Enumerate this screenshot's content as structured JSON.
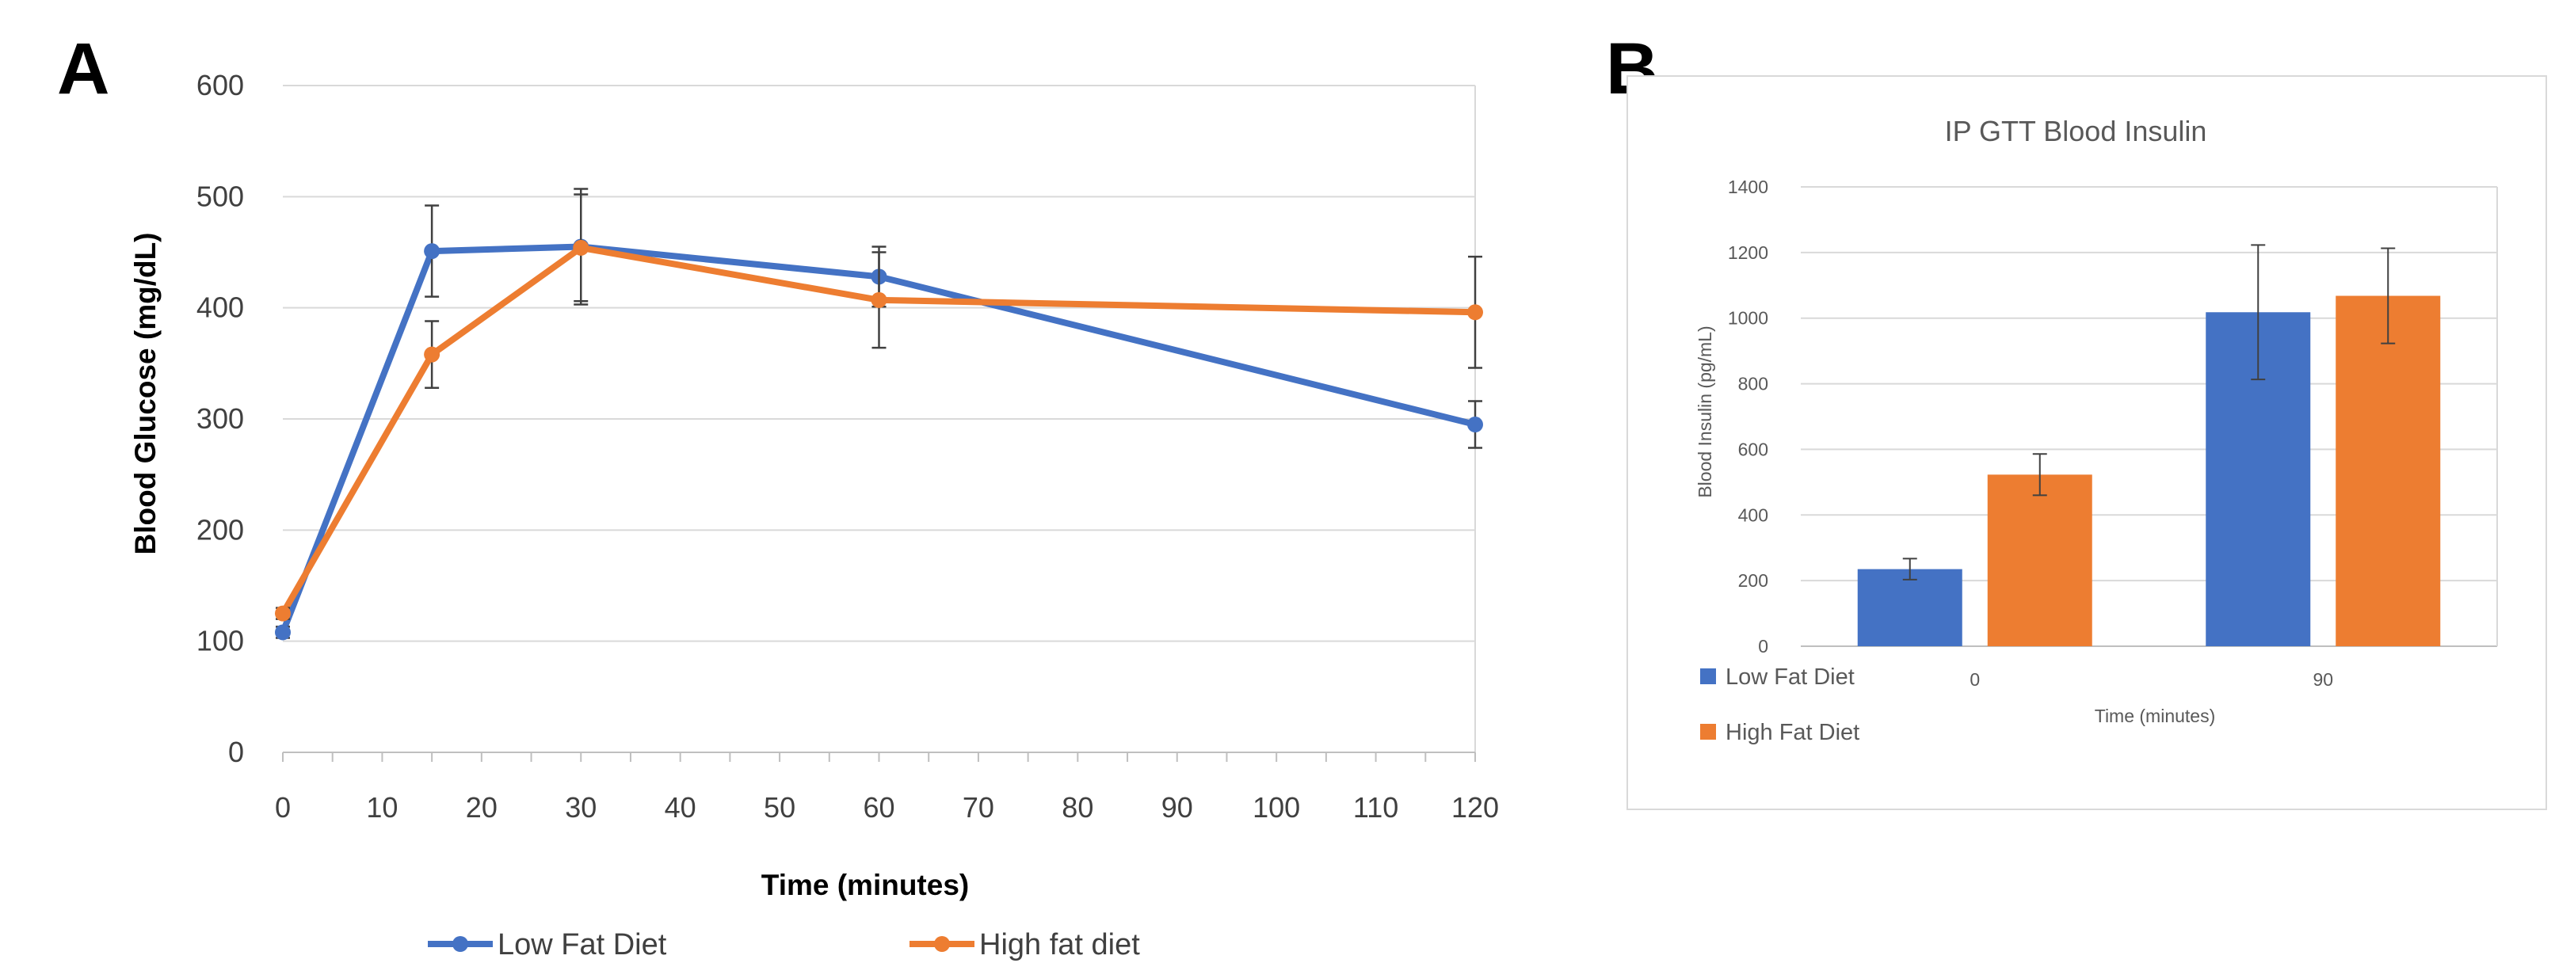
{
  "panels": {
    "a_letter": "A",
    "b_letter": "B"
  },
  "colors": {
    "low_fat": "#4472C4",
    "high_fat": "#ED7D31",
    "grid": "#D9D9D9",
    "error_bar": "#404040"
  },
  "chart_data": [
    {
      "type": "line",
      "title": "",
      "xlabel": "Time (minutes)",
      "ylabel": "Blood Glucose (mg/dL)",
      "x_ticks": [
        0,
        10,
        20,
        30,
        40,
        50,
        60,
        70,
        80,
        90,
        100,
        110,
        120
      ],
      "y_ticks": [
        0,
        100,
        200,
        300,
        400,
        500,
        600
      ],
      "xlim": [
        0,
        120
      ],
      "ylim": [
        0,
        600
      ],
      "grid": "horizontal",
      "legend": "bottom",
      "series": [
        {
          "name": "Low Fat Diet",
          "x": [
            0,
            15,
            30,
            60,
            120
          ],
          "values": [
            108,
            451,
            455,
            428,
            295
          ],
          "errors": [
            5,
            41,
            52,
            27,
            21
          ]
        },
        {
          "name": "High fat diet",
          "x": [
            0,
            15,
            30,
            60,
            120
          ],
          "values": [
            125,
            358,
            454,
            407,
            396
          ],
          "errors": [
            5,
            30,
            48,
            43,
            50
          ]
        }
      ]
    },
    {
      "type": "bar",
      "title": "IP GTT Blood Insulin",
      "xlabel": "Time (minutes)",
      "ylabel": "Blood Insulin (pg/mL)",
      "categories": [
        "0",
        "90"
      ],
      "y_ticks": [
        0,
        200,
        400,
        600,
        800,
        1000,
        1200,
        1400
      ],
      "ylim": [
        0,
        1400
      ],
      "grid": "horizontal",
      "legend": "bottom-left",
      "series": [
        {
          "name": "Low Fat Diet",
          "values": [
            235,
            1018
          ],
          "errors": [
            32,
            205
          ]
        },
        {
          "name": "High Fat Diet",
          "values": [
            523,
            1068
          ],
          "errors": [
            63,
            145
          ]
        }
      ]
    }
  ]
}
